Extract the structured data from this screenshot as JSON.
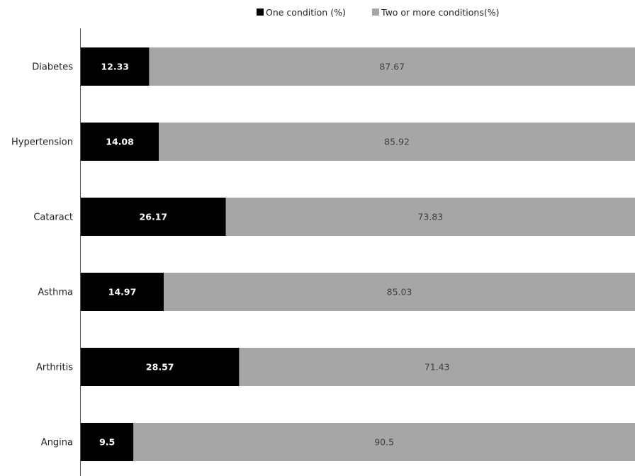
{
  "chart_data": {
    "type": "bar",
    "orientation": "horizontal",
    "stacked": true,
    "categories": [
      "Diabetes",
      "Hypertension",
      "Cataract",
      "Asthma",
      "Arthritis",
      "Angina"
    ],
    "series": [
      {
        "name": "One condition (%)",
        "values": [
          12.33,
          14.08,
          26.17,
          14.97,
          28.57,
          9.5
        ],
        "color": "#000000",
        "label_color": "#ffffff"
      },
      {
        "name": "Two or more conditions(%)",
        "values": [
          87.67,
          85.92,
          73.83,
          85.03,
          71.43,
          90.5
        ],
        "color": "#a6a6a6",
        "label_color": "#404040"
      }
    ],
    "xlim": [
      0,
      100
    ],
    "legend_position": "top",
    "grid": false,
    "title": "",
    "xlabel": "",
    "ylabel": ""
  }
}
